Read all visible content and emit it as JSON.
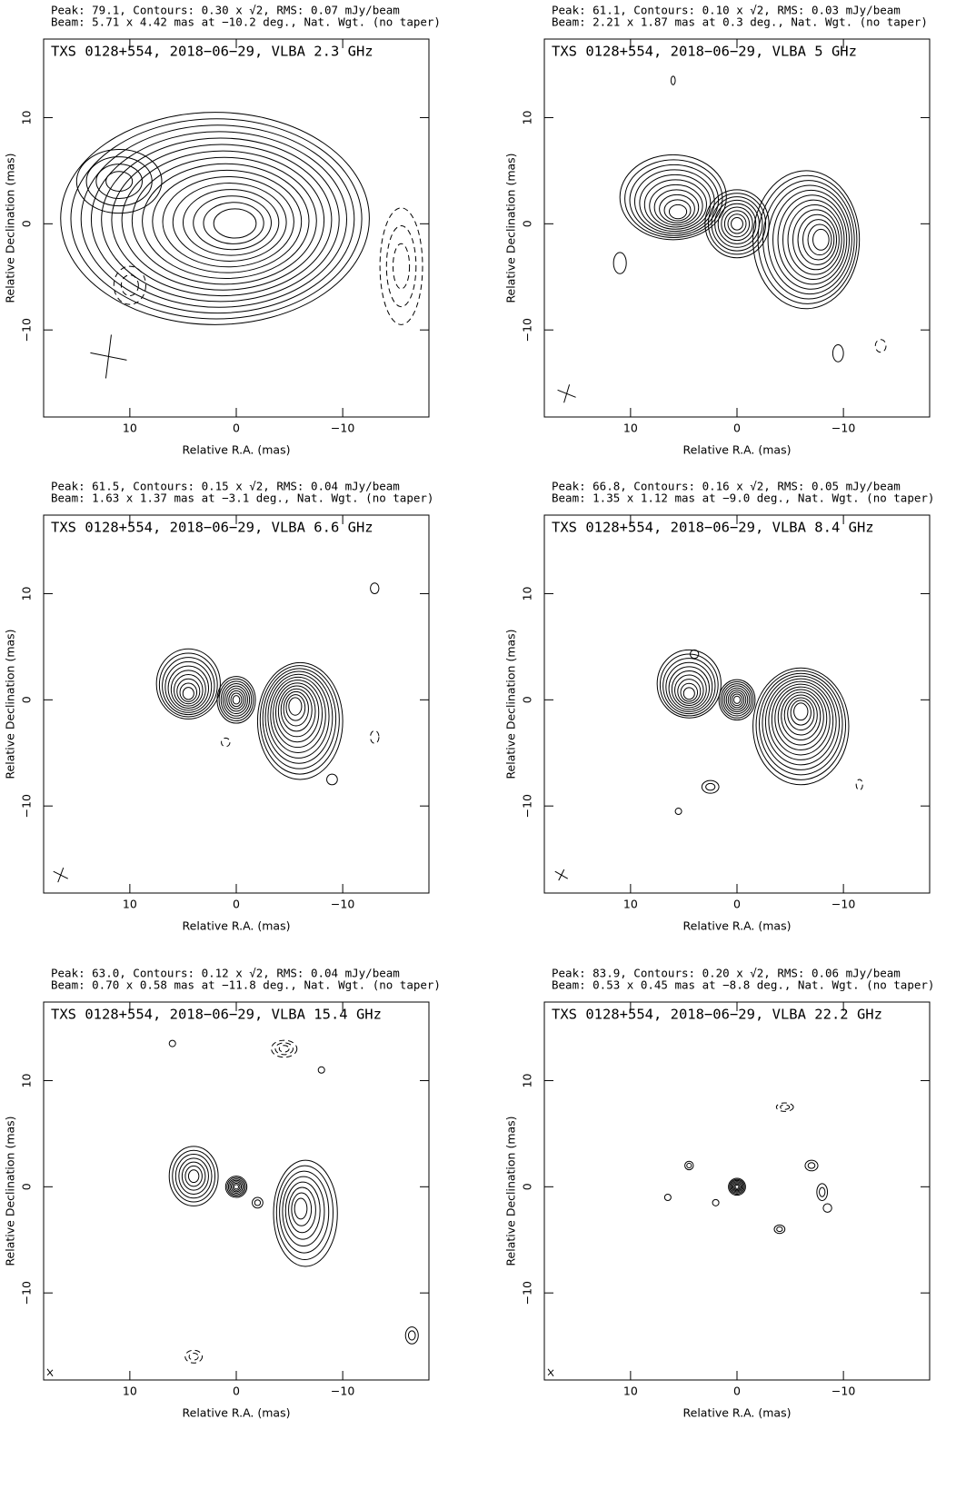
{
  "chart_data": [
    {
      "type": "contour",
      "header": [
        "Peak: 79.1, Contours: 0.30 x √2, RMS: 0.07 mJy/beam",
        "Beam: 5.71 x 4.42 mas at −10.2 deg., Nat. Wgt. (no taper)"
      ],
      "title": "TXS 0128+554, 2018−06−29, VLBA 2.3 GHz",
      "xlabel": "Relative R.A. (mas)",
      "ylabel": "Relative Declination (mas)",
      "xlim": [
        18.1,
        -18.1
      ],
      "ylim": [
        -18.2,
        17.4
      ],
      "xticks": [
        10,
        0,
        {
          "value": -10,
          "label": "−10"
        }
      ],
      "yticks": [
        {
          "value": -10,
          "label": "−10"
        },
        0,
        10
      ]
    },
    {
      "type": "contour",
      "header": [
        "Peak: 61.1, Contours: 0.10 x √2, RMS: 0.03 mJy/beam",
        "Beam: 2.21 x 1.87 mas at 0.3 deg., Nat. Wgt. (no taper)"
      ],
      "title": "TXS 0128+554, 2018−06−29, VLBA 5 GHz",
      "xlabel": "Relative R.A. (mas)",
      "ylabel": "Relative Declination (mas)",
      "xlim": [
        18.1,
        -18.1
      ],
      "ylim": [
        -18.2,
        17.4
      ],
      "xticks": [
        10,
        0,
        {
          "value": -10,
          "label": "−10"
        }
      ],
      "yticks": [
        {
          "value": -10,
          "label": "−10"
        },
        0,
        10
      ]
    },
    {
      "type": "contour",
      "header": [
        "Peak: 61.5, Contours: 0.15 x √2, RMS: 0.04 mJy/beam",
        "Beam: 1.63 x 1.37 mas at −3.1 deg., Nat. Wgt. (no taper)"
      ],
      "title": "TXS 0128+554, 2018−06−29, VLBA 6.6 GHz",
      "xlabel": "Relative R.A. (mas)",
      "ylabel": "Relative Declination (mas)",
      "xlim": [
        18.1,
        -18.1
      ],
      "ylim": [
        -18.2,
        17.4
      ],
      "xticks": [
        10,
        0,
        {
          "value": -10,
          "label": "−10"
        }
      ],
      "yticks": [
        {
          "value": -10,
          "label": "−10"
        },
        0,
        10
      ]
    },
    {
      "type": "contour",
      "header": [
        "Peak: 66.8, Contours: 0.16 x √2, RMS: 0.05 mJy/beam",
        "Beam: 1.35 x 1.12 mas at −9.0 deg., Nat. Wgt. (no taper)"
      ],
      "title": "TXS 0128+554, 2018−06−29, VLBA 8.4 GHz",
      "xlabel": "Relative R.A. (mas)",
      "ylabel": "Relative Declination (mas)",
      "xlim": [
        18.1,
        -18.1
      ],
      "ylim": [
        -18.2,
        17.4
      ],
      "xticks": [
        10,
        0,
        {
          "value": -10,
          "label": "−10"
        }
      ],
      "yticks": [
        {
          "value": -10,
          "label": "−10"
        },
        0,
        10
      ]
    },
    {
      "type": "contour",
      "header": [
        "Peak: 63.0, Contours: 0.12 x √2, RMS: 0.04 mJy/beam",
        "Beam: 0.70 x 0.58 mas at −11.8 deg., Nat. Wgt. (no taper)"
      ],
      "title": "TXS 0128+554, 2018−06−29, VLBA 15.4 GHz",
      "xlabel": "Relative R.A. (mas)",
      "ylabel": "Relative Declination (mas)",
      "xlim": [
        18.1,
        -18.1
      ],
      "ylim": [
        -18.2,
        17.4
      ],
      "xticks": [
        10,
        0,
        {
          "value": -10,
          "label": "−10"
        }
      ],
      "yticks": [
        {
          "value": -10,
          "label": "−10"
        },
        0,
        10
      ]
    },
    {
      "type": "contour",
      "header": [
        "Peak: 83.9, Contours: 0.20 x √2, RMS: 0.06 mJy/beam",
        "Beam: 0.53 x 0.45 mas at −8.8 deg., Nat. Wgt. (no taper)"
      ],
      "title": "TXS 0128+554, 2018−06−29, VLBA 22.2 GHz",
      "xlabel": "Relative R.A. (mas)",
      "ylabel": "Relative Declination (mas)",
      "xlim": [
        18.1,
        -18.1
      ],
      "ylim": [
        -18.2,
        17.4
      ],
      "xticks": [
        10,
        0,
        {
          "value": -10,
          "label": "−10"
        }
      ],
      "yticks": [
        {
          "value": -10,
          "label": "−10"
        },
        0,
        10
      ]
    }
  ]
}
